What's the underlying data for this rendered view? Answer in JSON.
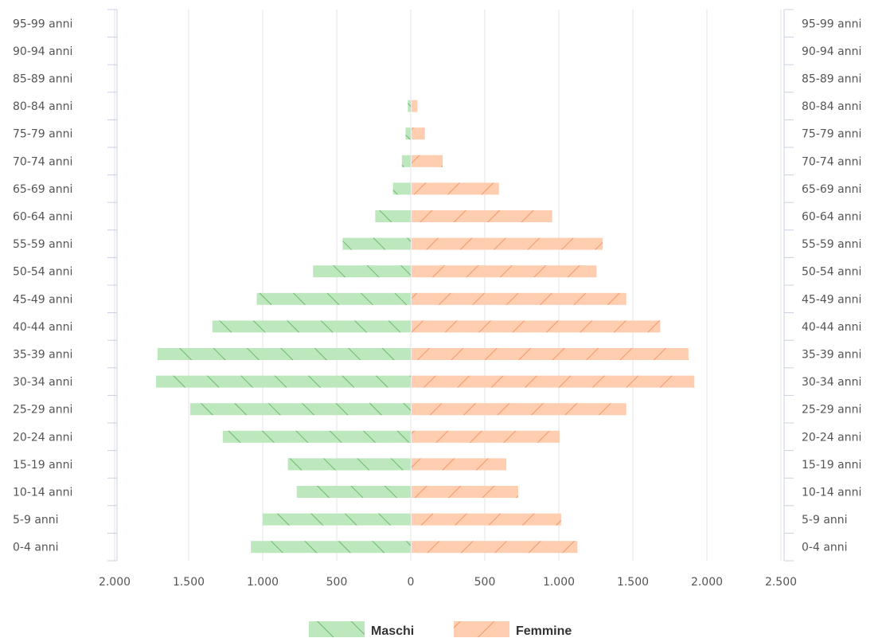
{
  "chart_data": {
    "type": "bar",
    "orientation": "horizontal-population-pyramid",
    "categories": [
      "0-4 anni",
      "5-9 anni",
      "10-14 anni",
      "15-19 anni",
      "20-24 anni",
      "25-29 anni",
      "30-34 anni",
      "35-39 anni",
      "40-44 anni",
      "45-49 anni",
      "50-54 anni",
      "55-59 anni",
      "60-64 anni",
      "65-69 anni",
      "70-74 anni",
      "75-79 anni",
      "80-84 anni",
      "85-89 anni",
      "90-94 anni",
      "95-99 anni"
    ],
    "series": [
      {
        "name": "Maschi",
        "color": "#90d890",
        "values": [
          1080,
          1000,
          770,
          830,
          1270,
          1490,
          1720,
          1710,
          1340,
          1040,
          660,
          460,
          240,
          120,
          60,
          35,
          20,
          0,
          0,
          0
        ]
      },
      {
        "name": "Femmine",
        "color": "#ffb38a",
        "values": [
          1120,
          1010,
          720,
          640,
          1000,
          1450,
          1910,
          1870,
          1680,
          1450,
          1250,
          1290,
          950,
          590,
          210,
          90,
          40,
          0,
          0,
          0
        ]
      }
    ],
    "x_ticks": [
      "2.000",
      "1.500",
      "1.000",
      "500",
      "0",
      "500",
      "1.000",
      "1.500",
      "2.000",
      "2.500"
    ],
    "x_range": [
      -2000,
      2500
    ],
    "grid": true,
    "legend_position": "bottom-center"
  },
  "legend": {
    "maschi_label": "Maschi",
    "femmine_label": "Femmine"
  }
}
